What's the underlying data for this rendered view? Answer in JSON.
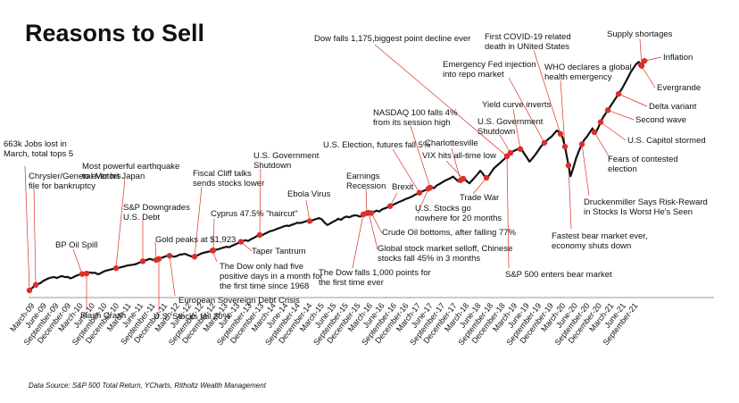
{
  "chart_data": {
    "type": "line",
    "title": "Reasons to Sell",
    "xlabel": "",
    "ylabel": "",
    "source": "Data Source: S&P 500 Total Return, YCharts, Ritholtz Wealth Management",
    "colors": {
      "line": "#111111",
      "marker": "#d9302a",
      "leader": "#d9302a",
      "baseline": "#999999"
    },
    "x_tick_labels": [
      "March-09",
      "June-09",
      "September-09",
      "December-09",
      "March-10",
      "June-10",
      "September-10",
      "December-10",
      "March-11",
      "June-11",
      "September-11",
      "December-11",
      "March-12",
      "June-12",
      "September-12",
      "December-12",
      "March-13",
      "June-13",
      "September-13",
      "December-13",
      "March-14",
      "June-14",
      "September-14",
      "December-14",
      "March-15",
      "June-15",
      "September-15",
      "December-15",
      "March-16",
      "June-16",
      "September-16",
      "December-16",
      "March-17",
      "June-17",
      "September-17",
      "December-17",
      "March-18",
      "June-18",
      "September-18",
      "December-18",
      "March-19",
      "June-19",
      "September-19",
      "December-19",
      "March-20",
      "June-20",
      "September-20",
      "December-20",
      "March-21",
      "June-21",
      "September-21"
    ],
    "series": [
      {
        "name": "",
        "y_relative": [
          100,
          112,
          125,
          130,
          135,
          145,
          152,
          158,
          162,
          164,
          160,
          166,
          169,
          164,
          165,
          158,
          163,
          170,
          175,
          180,
          176,
          182,
          187,
          184,
          185,
          178,
          182,
          190,
          195,
          198,
          202,
          205,
          208,
          210,
          213,
          217,
          220,
          222,
          224,
          227,
          233,
          238,
          243,
          247,
          252,
          248,
          244,
          250,
          255,
          260,
          265,
          268,
          265,
          262,
          266,
          272,
          274,
          276,
          270,
          265,
          260,
          266,
          272,
          278,
          282,
          285,
          288,
          292,
          295,
          298,
          302,
          306,
          310,
          308,
          314,
          320,
          326,
          332,
          337,
          342,
          338,
          346,
          352,
          360,
          368,
          364,
          372,
          378,
          385,
          388,
          393,
          398,
          403,
          408,
          412,
          410,
          416,
          420,
          426,
          424,
          428,
          432,
          436,
          432,
          440,
          444,
          448,
          442,
          426,
          415,
          422,
          430,
          436,
          445,
          440,
          450,
          456,
          452,
          458,
          462,
          460,
          455,
          465,
          470,
          474,
          472,
          478,
          484,
          480,
          490,
          495,
          500,
          506,
          512,
          518,
          524,
          530,
          536,
          542,
          546,
          552,
          560,
          566,
          572,
          578,
          584,
          590,
          598,
          592,
          605,
          612,
          620,
          628,
          634,
          640,
          648,
          636,
          625,
          632,
          640,
          626,
          616,
          630,
          645,
          660,
          676,
          660,
          640,
          650,
          670,
          688,
          700,
          712,
          724,
          736,
          750,
          762,
          770,
          776,
          782,
          780,
          760,
          740,
          720,
          735,
          752,
          770,
          790,
          805,
          818,
          830,
          840,
          855,
          870,
          860,
          840,
          790,
          720,
          650,
          690,
          735,
          770,
          800,
          825,
          840,
          860,
          880,
          855,
          880,
          910,
          935,
          955,
          975,
          995,
          1015,
          1035,
          1055,
          1075,
          1100,
          1125,
          1150,
          1170,
          1190,
          1200,
          1180,
          1205,
          1210
        ]
      }
    ],
    "events": [
      {
        "lines": [
          "663k Jobs lost in",
          "March, total tops 5"
        ]
      },
      {
        "lines": [
          "Chrysler/General Motors",
          "file for bankruptcy"
        ]
      },
      {
        "lines": [
          "BP Oil Spill"
        ]
      },
      {
        "lines": [
          "Flash Crash"
        ]
      },
      {
        "lines": [
          "Most powerful earthquake",
          "to ever hit Japan"
        ]
      },
      {
        "lines": [
          "S&P Downgrades",
          "U.S. Debt"
        ]
      },
      {
        "lines": [
          "U.S. Stocks fall 20%"
        ]
      },
      {
        "lines": [
          "European Sovereign Debt Crisis"
        ]
      },
      {
        "lines": [
          "Gold peaks at $1,923"
        ]
      },
      {
        "lines": [
          "Fiscal Cliff talks",
          "sends stocks lower"
        ]
      },
      {
        "lines": [
          "Cyprus 47.5% \"haircut\""
        ]
      },
      {
        "lines": [
          "The Dow only had five",
          "positive days in a month for",
          "the first time since 1968"
        ]
      },
      {
        "lines": [
          "U.S. Government",
          "Shutdown"
        ]
      },
      {
        "lines": [
          "Taper Tantrum"
        ]
      },
      {
        "lines": [
          "Ebola Virus"
        ]
      },
      {
        "lines": [
          "The Dow falls 1,000 points for",
          "the first time ever"
        ]
      },
      {
        "lines": [
          "Global stock market selloff, Chinese",
          "stocks fall 45% in 3 months"
        ]
      },
      {
        "lines": [
          "Earnings",
          "Recession"
        ]
      },
      {
        "lines": [
          "Brexit"
        ]
      },
      {
        "lines": [
          "Crude Oil bottoms, after falling 77%"
        ]
      },
      {
        "lines": [
          "U.S. Election, futures fall 5%"
        ]
      },
      {
        "lines": [
          "U.S. Stocks go",
          "nowhere for 20 months"
        ]
      },
      {
        "lines": [
          "NASDAQ 100 falls 4%",
          "from its  session high"
        ]
      },
      {
        "lines": [
          "Dow falls 1,175,biggest point decline ever"
        ]
      },
      {
        "lines": [
          "VIX hits all-time low"
        ]
      },
      {
        "lines": [
          "Charlottesville"
        ]
      },
      {
        "lines": [
          "Trade War"
        ]
      },
      {
        "lines": [
          "S&P 500 enters bear market"
        ]
      },
      {
        "lines": [
          "U.S. Government",
          "Shutdown"
        ]
      },
      {
        "lines": [
          "Yield curve inverts"
        ]
      },
      {
        "lines": [
          "Emergency Fed injection",
          "into repo market"
        ]
      },
      {
        "lines": [
          "First COVID-19 related",
          "death in UNited States"
        ]
      },
      {
        "lines": [
          "WHO declares a global",
          "health emergency"
        ]
      },
      {
        "lines": [
          "Fastest bear market ever,",
          "economy shuts down"
        ]
      },
      {
        "lines": [
          "Druckenmiller Says Risk-Reward",
          "in Stocks Is Worst He's Seen"
        ]
      },
      {
        "lines": [
          "Fears of contested",
          "election"
        ]
      },
      {
        "lines": [
          "U.S. Capitol stormed"
        ]
      },
      {
        "lines": [
          "Second wave"
        ]
      },
      {
        "lines": [
          "Delta variant"
        ]
      },
      {
        "lines": [
          "Supply shortages"
        ]
      },
      {
        "lines": [
          "Inflation"
        ]
      },
      {
        "lines": [
          "Evergrande"
        ]
      }
    ]
  }
}
